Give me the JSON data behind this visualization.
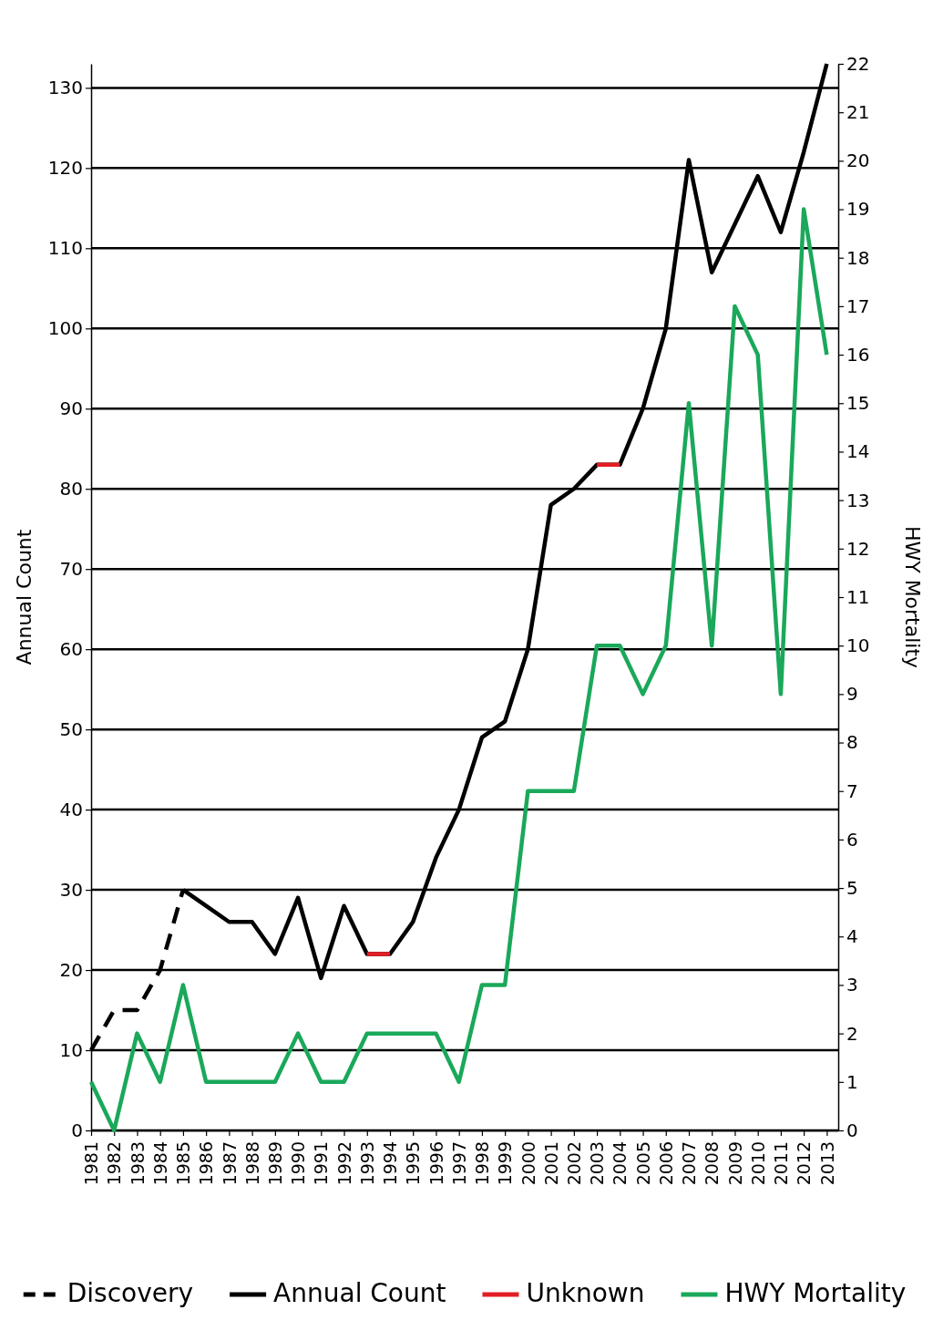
{
  "chart_data": {
    "type": "line",
    "ylabel": "Annual Count",
    "y2label": "HWY Mortality",
    "x": [
      1981,
      1982,
      1983,
      1984,
      1985,
      1986,
      1987,
      1988,
      1989,
      1990,
      1991,
      1992,
      1993,
      1994,
      1995,
      1996,
      1997,
      1998,
      1999,
      2000,
      2001,
      2002,
      2003,
      2004,
      2005,
      2006,
      2007,
      2008,
      2009,
      2010,
      2011,
      2012,
      2013
    ],
    "xlim": [
      1981,
      2013.5
    ],
    "xticks": [
      1981,
      1982,
      1983,
      1984,
      1985,
      1986,
      1987,
      1988,
      1989,
      1990,
      1991,
      1992,
      1993,
      1994,
      1995,
      1996,
      1997,
      1998,
      1999,
      2000,
      2001,
      2002,
      2003,
      2004,
      2005,
      2006,
      2007,
      2008,
      2009,
      2010,
      2011,
      2012,
      2013
    ],
    "ylim": [
      0,
      133
    ],
    "yticks": [
      0,
      10,
      20,
      30,
      40,
      50,
      60,
      70,
      80,
      90,
      100,
      110,
      120,
      130
    ],
    "y2lim": [
      0,
      22
    ],
    "y2ticks": [
      0,
      1,
      2,
      3,
      4,
      5,
      6,
      7,
      8,
      9,
      10,
      11,
      12,
      13,
      14,
      15,
      16,
      17,
      18,
      19,
      20,
      21,
      22
    ],
    "grid": "y",
    "legend": "bottom",
    "series": [
      {
        "name": "Discovery",
        "color": "#000000",
        "line_style": "dashed",
        "values": [
          10,
          15,
          15,
          20,
          30,
          null,
          null,
          null,
          null,
          null,
          null,
          null,
          null,
          null,
          null,
          null,
          null,
          null,
          null,
          null,
          null,
          null,
          null,
          null,
          null,
          null,
          null,
          null,
          null,
          null,
          null,
          null,
          null
        ]
      },
      {
        "name": "Annual Count",
        "color": "#000000",
        "line_style": "solid",
        "values": [
          null,
          null,
          null,
          null,
          30,
          28,
          26,
          26,
          22,
          29,
          19,
          28,
          22,
          22,
          26,
          34,
          40,
          49,
          51,
          60,
          78,
          80,
          83,
          83,
          90,
          100,
          121,
          107,
          113,
          119,
          112,
          122,
          133
        ]
      },
      {
        "name": "Unknown",
        "color": "#e31e24",
        "line_style": "solid",
        "values": [
          null,
          null,
          null,
          null,
          null,
          null,
          null,
          null,
          null,
          null,
          null,
          null,
          22,
          22,
          null,
          null,
          null,
          null,
          null,
          null,
          null,
          null,
          83,
          83,
          null,
          null,
          null,
          null,
          null,
          null,
          null,
          null,
          null
        ]
      },
      {
        "name": "HWY Mortality",
        "color": "#1aa85a",
        "line_style": "solid",
        "axis": "y2",
        "values": [
          1,
          0,
          2,
          1,
          3,
          1,
          1,
          1,
          1,
          2,
          1,
          1,
          2,
          2,
          2,
          2,
          1,
          3,
          3,
          7,
          7,
          7,
          10,
          10,
          9,
          10,
          15,
          10,
          17,
          16,
          9,
          19,
          16
        ]
      }
    ]
  }
}
